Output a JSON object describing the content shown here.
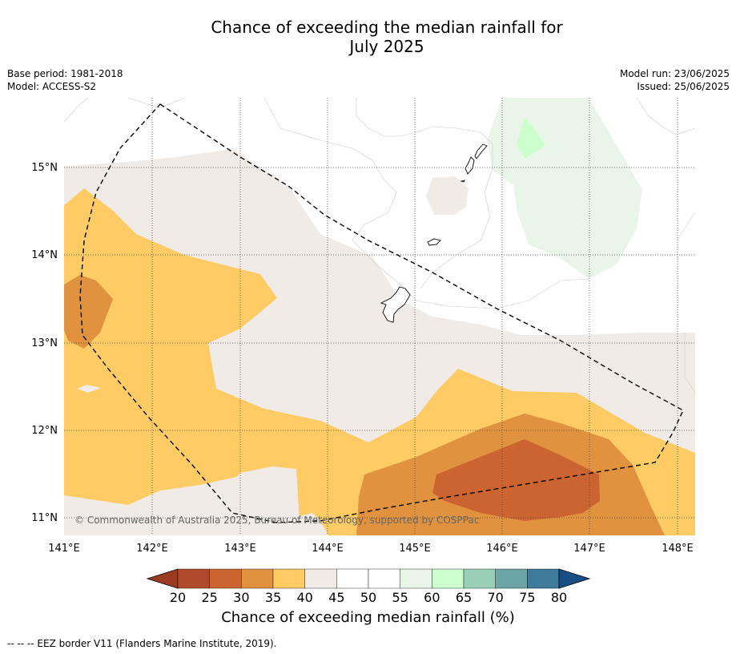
{
  "title_line1": "Chance of exceeding the median rainfall for",
  "title_line2": "July 2025",
  "meta_left": {
    "base_period": "Base period: 1981-2018",
    "model": "Model: ACCESS-S2"
  },
  "meta_right": {
    "model_run": "Model run: 23/06/2025",
    "issued": "Issued: 25/06/2025"
  },
  "map": {
    "lon_range": [
      141.0,
      148.2
    ],
    "lat_range": [
      10.8,
      15.8
    ],
    "lon_ticks": [
      "141°E",
      "142°E",
      "143°E",
      "144°E",
      "145°E",
      "146°E",
      "147°E",
      "148°E"
    ],
    "lat_ticks": [
      "15°N",
      "14°N",
      "13°N",
      "12°N",
      "11°N"
    ],
    "grid": true,
    "copyright": "© Commonwealth of Australia 2025, Bureau of Meteorology, supported by COSPPac",
    "zone_colors": {
      "20-25": "#b14a2a",
      "25-30": "#cb6430",
      "30-35": "#e0923f",
      "35-40": "#fecb65",
      "40-45": "#f0ebe6",
      "45-55": "#ffffff",
      "55-60": "#e9f5e9",
      "60-65": "#ccffcc"
    }
  },
  "colorbar": {
    "title": "Chance of exceeding median rainfall (%)",
    "ticks": [
      "20",
      "25",
      "30",
      "35",
      "40",
      "45",
      "50",
      "55",
      "60",
      "65",
      "70",
      "75",
      "80"
    ],
    "colors": [
      "#b14a2a",
      "#cb6430",
      "#e0923f",
      "#fecb65",
      "#f0ebe6",
      "#ffffff",
      "#ffffff",
      "#e9f5e9",
      "#ccffcc",
      "#9acfb7",
      "#6ba5a7",
      "#3f7b9a"
    ],
    "low_extend_color": "#9a3b22",
    "high_extend_color": "#174e86"
  },
  "footnote": "--  --  -- EEZ border V11 (Flanders Marine Institute, 2019)."
}
